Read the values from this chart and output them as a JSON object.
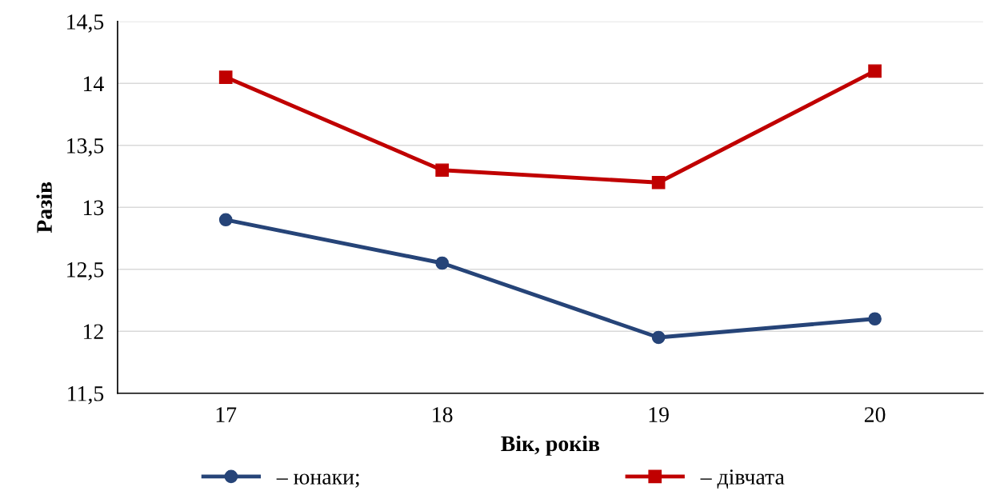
{
  "chart_data": {
    "type": "line",
    "xlabel": "Вік, років",
    "ylabel": "Разів",
    "categories": [
      "17",
      "18",
      "19",
      "20"
    ],
    "series": [
      {
        "name": "– юнаки;",
        "color": "#264478",
        "marker": "circle",
        "values": [
          12.9,
          12.55,
          11.95,
          12.1
        ]
      },
      {
        "name": "– дівчата",
        "color": "#c00000",
        "marker": "square",
        "values": [
          14.05,
          13.3,
          13.2,
          14.1
        ]
      }
    ],
    "ylim": [
      11.5,
      14.5
    ],
    "yticks": [
      {
        "value": 11.5,
        "label": "11,5"
      },
      12,
      {
        "value": 12.5,
        "label": "12,5"
      },
      13,
      {
        "value": 13.5,
        "label": "13,5"
      },
      14,
      {
        "value": 14.5,
        "label": "14,5"
      }
    ],
    "grid": "y",
    "legend": "bottom",
    "line_style": "solid"
  }
}
